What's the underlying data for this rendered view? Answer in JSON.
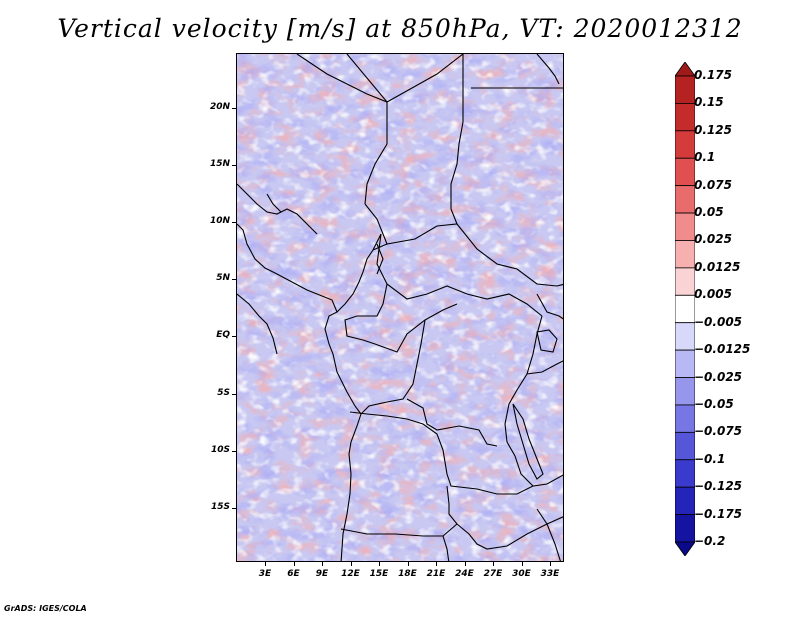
{
  "title": "Vertical velocity [m/s] at 850hPa, VT: 2020012312",
  "credit": "GrADS: IGES/COLA",
  "latitude_labels": [
    "20N",
    "15N",
    "10N",
    "5N",
    "EQ",
    "5S",
    "10S",
    "15S"
  ],
  "longitude_labels": [
    "3E",
    "6E",
    "9E",
    "12E",
    "15E",
    "18E",
    "21E",
    "24E",
    "27E",
    "30E",
    "33E"
  ],
  "colorbar": {
    "labels": [
      "0.175",
      "0.15",
      "0.125",
      "0.1",
      "0.075",
      "0.05",
      "0.025",
      "0.0125",
      "0.005",
      "−0.005",
      "−0.0125",
      "−0.025",
      "−0.05",
      "−0.075",
      "−0.1",
      "−0.125",
      "−0.175",
      "−0.2"
    ],
    "colors": [
      "#a01a1a",
      "#b42222",
      "#c42c2c",
      "#d43c3c",
      "#e05050",
      "#e86c6c",
      "#f08c8c",
      "#f6b0b0",
      "#fad4d4",
      "#ffffff",
      "#d8d8fa",
      "#b8b8f4",
      "#9696ec",
      "#7676e4",
      "#5656d8",
      "#3a3acc",
      "#2424b8",
      "#1414a0",
      "#0a0a88"
    ]
  }
}
